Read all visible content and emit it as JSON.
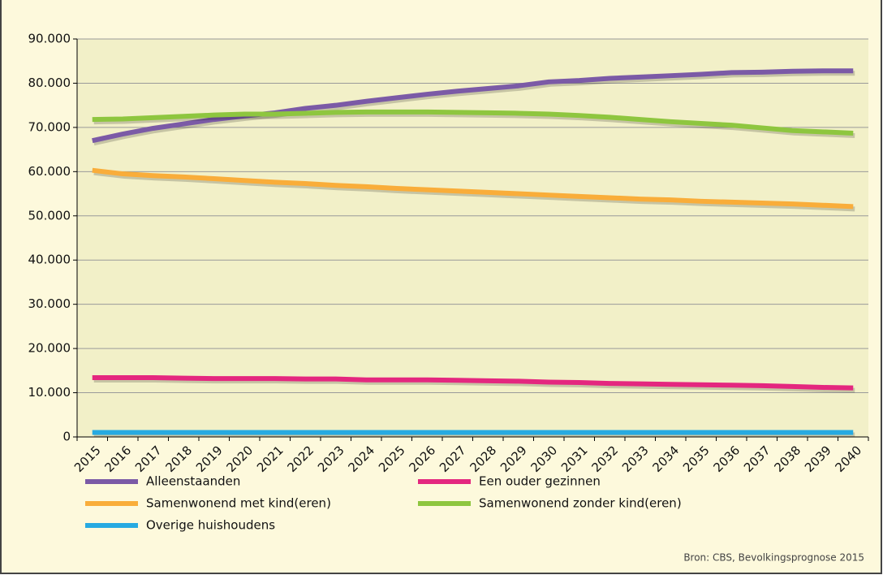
{
  "chart_data": {
    "type": "line",
    "categories": [
      "2015",
      "2016",
      "2017",
      "2018",
      "2019",
      "2020",
      "2021",
      "2022",
      "2023",
      "2024",
      "2025",
      "2026",
      "2027",
      "2028",
      "2029",
      "2030",
      "2031",
      "2032",
      "2033",
      "2034",
      "2035",
      "2036",
      "2037",
      "2038",
      "2039",
      "2040"
    ],
    "series": [
      {
        "name": "Alleenstaanden",
        "color": "#7b5aa6",
        "values": [
          67000,
          68500,
          69800,
          70800,
          71800,
          72600,
          73300,
          74300,
          75000,
          75900,
          76700,
          77500,
          78200,
          78800,
          79400,
          80300,
          80600,
          81100,
          81400,
          81700,
          82000,
          82400,
          82500,
          82700,
          82800,
          82800
        ]
      },
      {
        "name": "Een ouder gezinnen",
        "color": "#e4277f",
        "values": [
          13400,
          13400,
          13400,
          13300,
          13200,
          13200,
          13200,
          13100,
          13100,
          12900,
          12900,
          12900,
          12800,
          12700,
          12600,
          12400,
          12300,
          12100,
          12000,
          11900,
          11800,
          11700,
          11600,
          11400,
          11200,
          11100
        ]
      },
      {
        "name": "Samenwonend met kind(eren)",
        "color": "#f9ad3a",
        "values": [
          60300,
          59500,
          59100,
          58800,
          58400,
          58000,
          57600,
          57300,
          56900,
          56600,
          56200,
          55900,
          55600,
          55300,
          55000,
          54700,
          54400,
          54100,
          53800,
          53600,
          53300,
          53100,
          52900,
          52700,
          52400,
          52100
        ]
      },
      {
        "name": "Samenwonend zonder kind(eren)",
        "color": "#8ec63f",
        "values": [
          71800,
          71900,
          72200,
          72500,
          72800,
          73000,
          73000,
          73200,
          73400,
          73500,
          73500,
          73500,
          73400,
          73300,
          73200,
          73000,
          72700,
          72300,
          71800,
          71300,
          70900,
          70500,
          69900,
          69300,
          69000,
          68700
        ]
      },
      {
        "name": "Overige huishoudens",
        "color": "#27aae1",
        "values": [
          1000,
          1000,
          1000,
          1000,
          1000,
          1000,
          1000,
          1000,
          1000,
          1000,
          1000,
          1000,
          1000,
          1000,
          1000,
          1000,
          1000,
          1000,
          1000,
          1000,
          1000,
          1000,
          1000,
          1000,
          1000,
          1000
        ]
      }
    ],
    "ylim": [
      0,
      90000
    ],
    "yticks": [
      0,
      {
        "value": 10000,
        "label": "10.000"
      },
      {
        "value": 20000,
        "label": "20.000"
      },
      {
        "value": 30000,
        "label": "30.000"
      },
      {
        "value": 40000,
        "label": "40.000"
      },
      {
        "value": 50000,
        "label": "50.000"
      },
      {
        "value": 60000,
        "label": "60.000"
      },
      {
        "value": 70000,
        "label": "70.000"
      },
      {
        "value": 80000,
        "label": "80.000"
      },
      {
        "value": 90000,
        "label": "90.000"
      }
    ],
    "grid": true,
    "source": "Bron: CBS, Bevolkingsprognose 2015"
  }
}
